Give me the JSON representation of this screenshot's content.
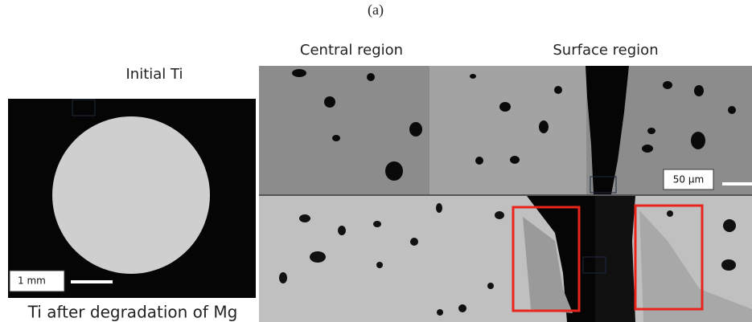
{
  "panel_label": "(a)",
  "column_titles": [
    "Central region",
    "Surface region"
  ],
  "left_title": "Initial Ti",
  "left_scale": "1 mm",
  "right_scale": "50 µm",
  "left_caption": "Ti after degradation of Mg"
}
